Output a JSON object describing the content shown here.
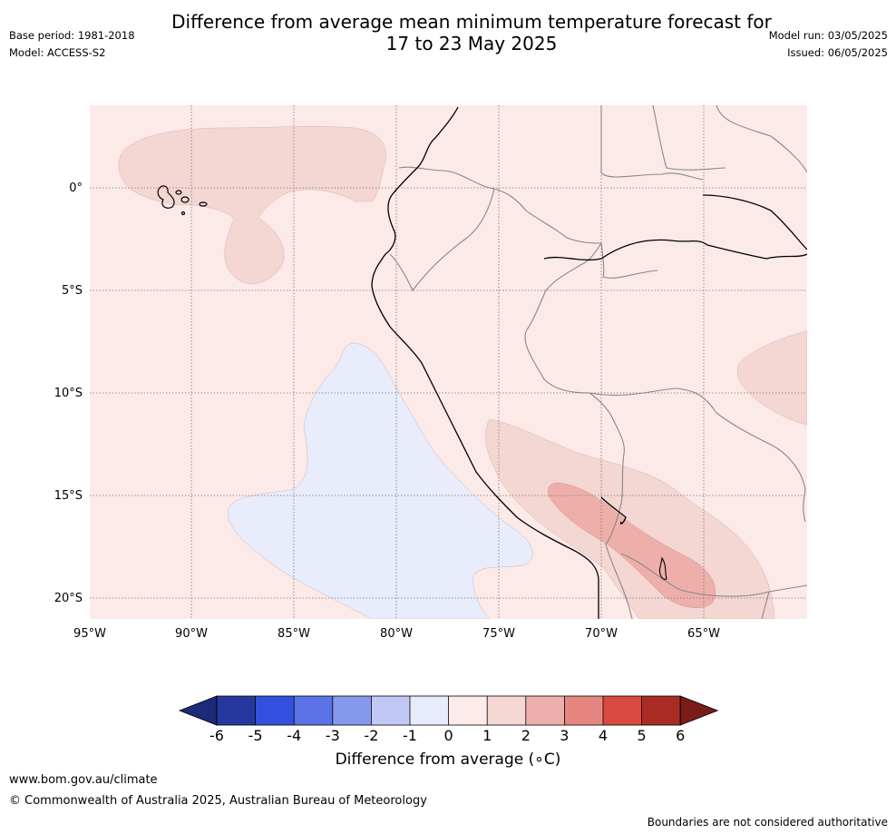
{
  "header": {
    "title": "Difference from average mean minimum temperature forecast for\n17 to 23 May 2025",
    "base_period": "Base period: 1981-2018",
    "model": "Model: ACCESS-S2",
    "model_run": "Model run: 03/05/2025",
    "issued": "Issued: 06/05/2025"
  },
  "map": {
    "lon_labels": [
      "95°W",
      "90°W",
      "85°W",
      "80°W",
      "75°W",
      "70°W",
      "65°W"
    ],
    "lat_labels": [
      "0°",
      "5°S",
      "10°S",
      "15°S",
      "20°S"
    ],
    "colors": {
      "background_anomaly": "#fbeae8",
      "warm_1_2": "#f4d6d3",
      "warm_2_3": "#eeafab",
      "cool_0_minus1": "#e8ecfb",
      "coast": "#000000",
      "border": "#888888"
    }
  },
  "colorbar": {
    "title": "Difference from average (∘C)",
    "ticks": [
      "-6",
      "-5",
      "-4",
      "-3",
      "-2",
      "-1",
      "0",
      "1",
      "2",
      "3",
      "4",
      "5",
      "6"
    ],
    "colors": [
      "#26389e",
      "#3450de",
      "#5b73e7",
      "#8598ec",
      "#c1c8f5",
      "#e8ebfb",
      "#fcebea",
      "#f5d7d4",
      "#edafab",
      "#e58780",
      "#da4a40",
      "#a92c24"
    ],
    "under_color": "#1b2a79",
    "over_color": "#7a1c18"
  },
  "footer": {
    "url": "www.bom.gov.au/climate",
    "copyright": "© Commonwealth of Australia 2025, Australian Bureau of Meteorology",
    "disclaimer": "Boundaries are not considered authoritative"
  }
}
